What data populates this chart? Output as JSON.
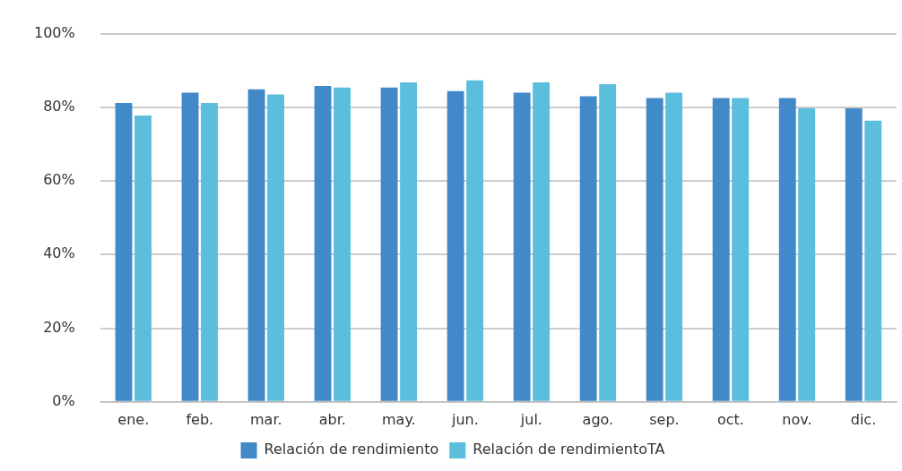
{
  "chart_data": {
    "type": "bar",
    "categories": [
      "ene.",
      "feb.",
      "mar.",
      "abr.",
      "may.",
      "jun.",
      "jul.",
      "ago.",
      "sep.",
      "oct.",
      "nov.",
      "dic."
    ],
    "series": [
      {
        "name": "Relación de rendimiento",
        "color": "#4189c9",
        "values": [
          81.2,
          84.0,
          84.9,
          85.8,
          85.4,
          84.4,
          84.0,
          83.0,
          82.5,
          82.5,
          82.5,
          79.7
        ]
      },
      {
        "name": "Relación de rendimientoTA",
        "color": "#5bbedd",
        "values": [
          77.8,
          81.2,
          83.5,
          85.4,
          86.8,
          87.3,
          86.8,
          86.3,
          84.0,
          82.5,
          79.7,
          76.4
        ]
      }
    ],
    "ylim": [
      0,
      100
    ],
    "yticks": [
      {
        "value": 0,
        "label": "0%"
      },
      {
        "value": 20,
        "label": "20%"
      },
      {
        "value": 40,
        "label": "40%"
      },
      {
        "value": 60,
        "label": "60%"
      },
      {
        "value": 80,
        "label": "80%"
      },
      {
        "value": 100,
        "label": "100%"
      }
    ],
    "grid": "y",
    "legend": "bottom"
  }
}
